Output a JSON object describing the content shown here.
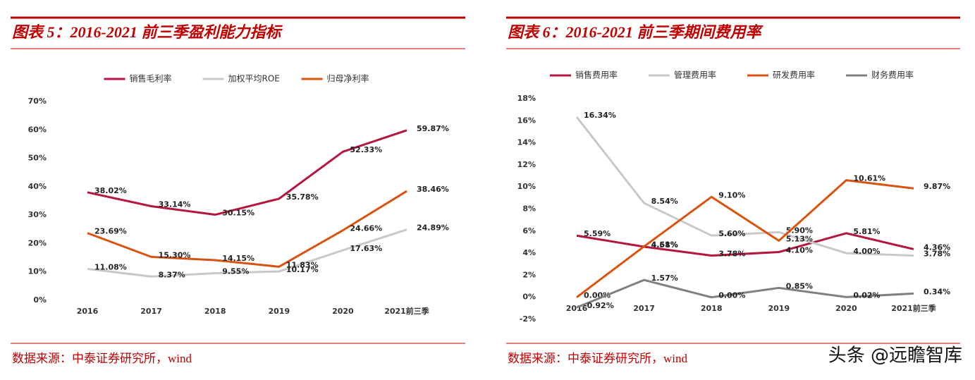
{
  "chart_data": [
    {
      "type": "line",
      "title": "图表 5：2016-2021 前三季盈利能力指标",
      "source": "数据来源：中泰证券研究所，wind",
      "categories": [
        "2016",
        "2017",
        "2018",
        "2019",
        "2020",
        "2021前三季"
      ],
      "ylim": [
        0,
        70
      ],
      "yticks": [
        {
          "value": 0,
          "label": "0%"
        },
        {
          "value": 10,
          "label": "10%"
        },
        {
          "value": 20,
          "label": "20%"
        },
        {
          "value": 30,
          "label": "30%"
        },
        {
          "value": 40,
          "label": "40%"
        },
        {
          "value": 50,
          "label": "50%"
        },
        {
          "value": 60,
          "label": "60%"
        },
        {
          "value": 70,
          "label": "70%"
        }
      ],
      "series": [
        {
          "name": "销售毛利率",
          "color": "#b5163f",
          "values": [
            38.02,
            33.14,
            30.15,
            35.78,
            52.33,
            59.87
          ],
          "value_labels": [
            "38.02%",
            "33.14%",
            "30.15%",
            "35.78%",
            "52.33%",
            "59.87%"
          ]
        },
        {
          "name": "加权平均ROE",
          "color": "#c8c8c8",
          "values": [
            11.08,
            8.37,
            9.55,
            10.17,
            17.63,
            24.89
          ],
          "value_labels": [
            "11.08%",
            "8.37%",
            "9.55%",
            "10.17%",
            "17.63%",
            "24.89%"
          ]
        },
        {
          "name": "归母净利率",
          "color": "#d9530f",
          "values": [
            23.69,
            15.3,
            14.15,
            11.83,
            24.66,
            38.46
          ],
          "value_labels": [
            "23.69%",
            "15.30%",
            "14.15%",
            "11.83%",
            "24.66%",
            "38.46%"
          ]
        }
      ]
    },
    {
      "type": "line",
      "title": "图表 6：2016-2021 前三季期间费用率",
      "source": "数据来源：中泰证券研究所，wind",
      "categories": [
        "2016",
        "2017",
        "2018",
        "2019",
        "2020",
        "2021前三季"
      ],
      "ylim": [
        -2,
        18
      ],
      "yticks": [
        {
          "value": -2,
          "label": "-2%"
        },
        {
          "value": 0,
          "label": "0%"
        },
        {
          "value": 2,
          "label": "2%"
        },
        {
          "value": 4,
          "label": "4%"
        },
        {
          "value": 6,
          "label": "6%"
        },
        {
          "value": 8,
          "label": "8%"
        },
        {
          "value": 10,
          "label": "10%"
        },
        {
          "value": 12,
          "label": "12%"
        },
        {
          "value": 14,
          "label": "14%"
        },
        {
          "value": 16,
          "label": "16%"
        },
        {
          "value": 18,
          "label": "18%"
        }
      ],
      "series": [
        {
          "name": "销售费用率",
          "color": "#b5163f",
          "values": [
            5.59,
            4.58,
            3.78,
            4.1,
            5.81,
            4.36
          ],
          "value_labels": [
            "5.59%",
            "4.58%",
            "3.78%",
            "4.10%",
            "5.81%",
            "4.36%"
          ]
        },
        {
          "name": "管理费用率",
          "color": "#c8c8c8",
          "values": [
            16.34,
            8.54,
            5.6,
            5.9,
            4.0,
            3.78
          ],
          "value_labels": [
            "16.34%",
            "8.54%",
            "5.60%",
            "5.90%",
            "4.00%",
            "3.78%"
          ]
        },
        {
          "name": "研发费用率",
          "color": "#d9530f",
          "values": [
            0.0,
            4.61,
            9.1,
            5.13,
            10.61,
            9.87
          ],
          "value_labels": [
            "0.00%",
            "4.61%",
            "9.10%",
            "5.13%",
            "10.61%",
            "9.87%"
          ]
        },
        {
          "name": "财务费用率",
          "color": "#808080",
          "values": [
            -0.92,
            1.57,
            0.0,
            0.85,
            0.02,
            0.34
          ],
          "value_labels": [
            "-0.92%",
            "1.57%",
            "0.00%",
            "0.85%",
            "0.02%",
            "0.34%"
          ]
        }
      ]
    }
  ],
  "watermark": "头条 @远瞻智库"
}
